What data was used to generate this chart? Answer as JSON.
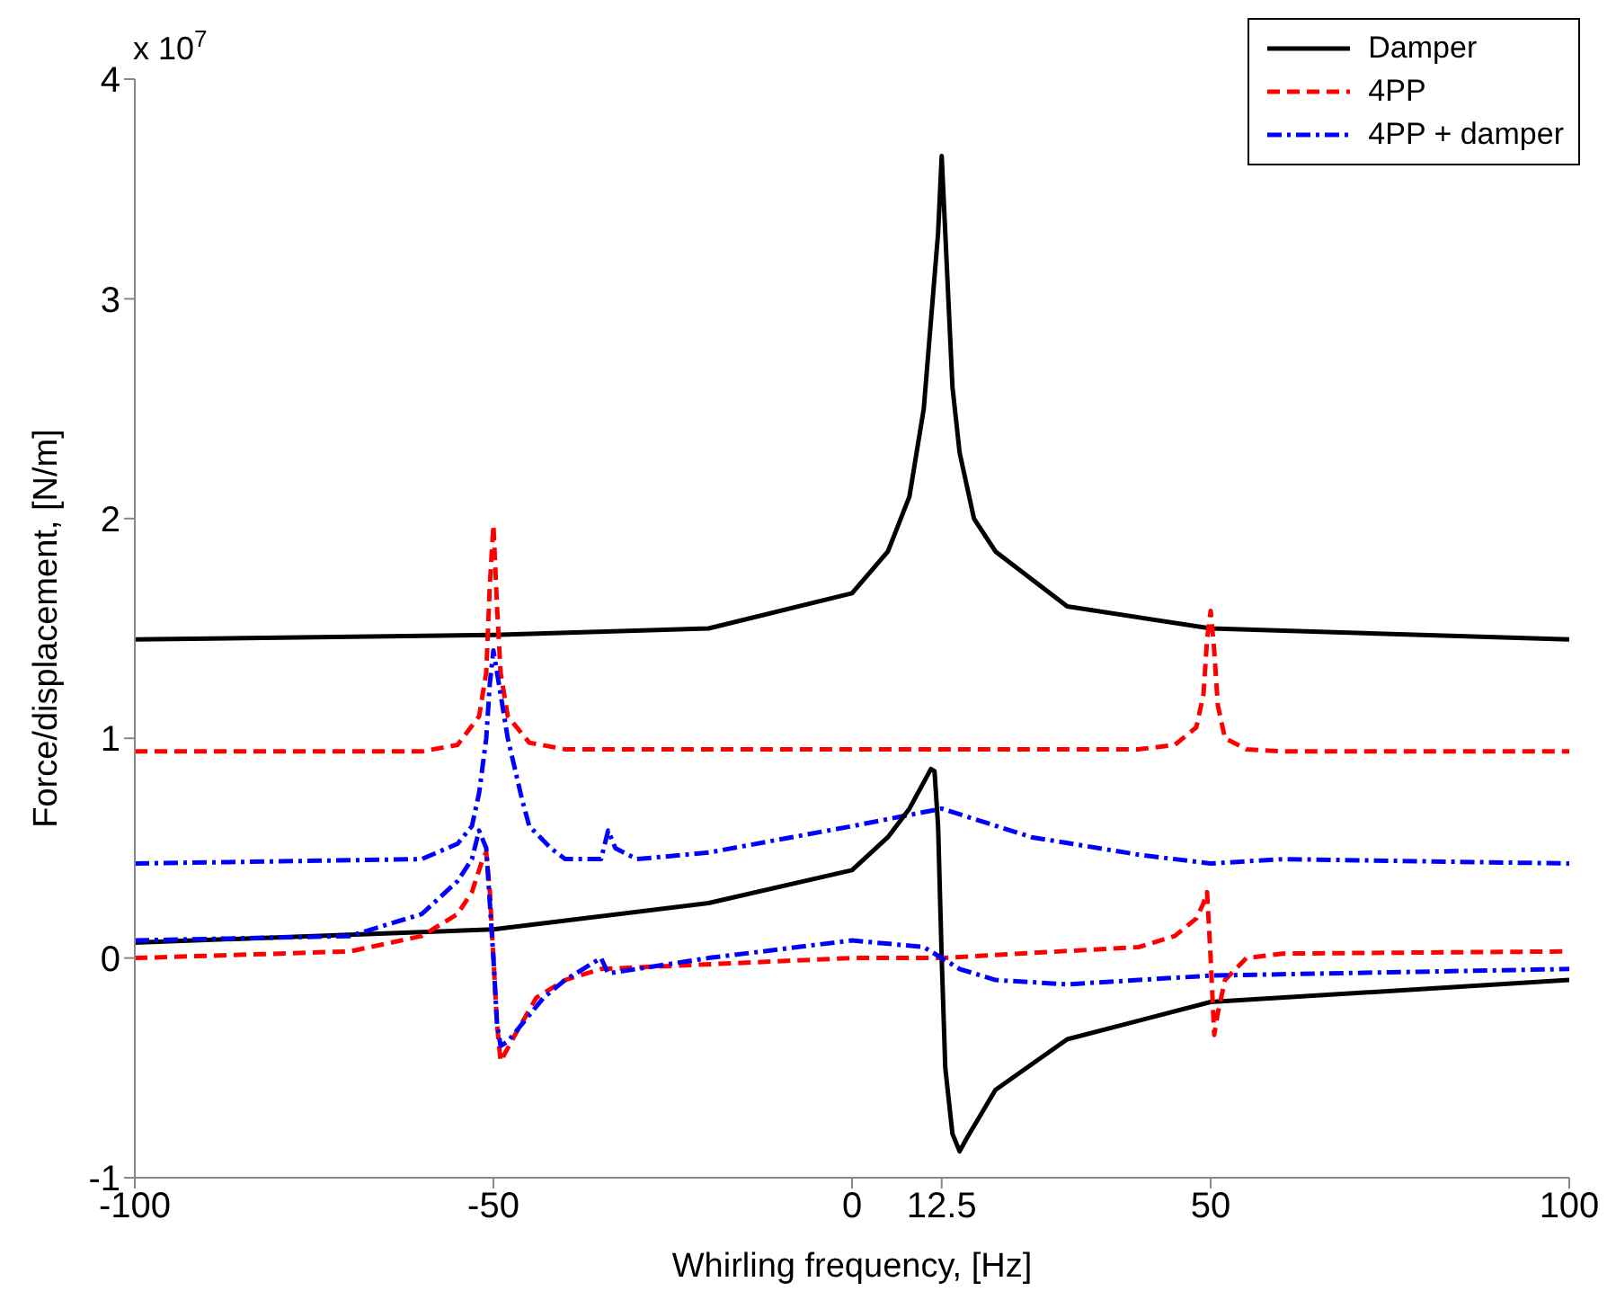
{
  "chart_data": {
    "type": "line",
    "xlabel": "Whirling frequency, [Hz]",
    "ylabel": "Force/displacement, [N/m]",
    "annotations": [
      "x 10$^{7}$"
    ],
    "xlim": [
      -100,
      100
    ],
    "xticks": [
      -100,
      -50,
      0,
      12.5,
      50,
      100
    ],
    "ylim": [
      -1,
      4
    ],
    "yticks": [
      -1,
      0,
      1,
      2,
      3,
      4
    ],
    "grid": false,
    "legend": "top right",
    "marker": "none",
    "series": [
      {
        "name": "Damper",
        "color": "#000000",
        "line_style": "solid",
        "x": [
          -100,
          -50,
          -20,
          0,
          5,
          8,
          10,
          11,
          12,
          12.5,
          13,
          14,
          15,
          17,
          20,
          30,
          50,
          100
        ],
        "values": [
          1.45,
          1.47,
          1.5,
          1.66,
          1.85,
          2.1,
          2.5,
          2.9,
          3.3,
          3.65,
          3.3,
          2.6,
          2.3,
          2.0,
          1.85,
          1.6,
          1.5,
          1.45
        ]
      },
      {
        "name": "4PP",
        "color": "#ff0000",
        "line_style": "dashed",
        "x": [
          -100,
          -60,
          -55,
          -52,
          -51,
          -50.5,
          -50,
          -49.5,
          -49,
          -48,
          -45,
          -40,
          0,
          40,
          45,
          48,
          49,
          49.5,
          50,
          50.5,
          51,
          52,
          55,
          60,
          100
        ],
        "values": [
          0.94,
          0.94,
          0.97,
          1.1,
          1.3,
          1.7,
          1.97,
          1.6,
          1.3,
          1.1,
          0.98,
          0.95,
          0.95,
          0.95,
          0.97,
          1.05,
          1.2,
          1.45,
          1.58,
          1.4,
          1.15,
          1.0,
          0.95,
          0.94,
          0.94
        ]
      },
      {
        "name": "4PP + damper",
        "color": "#0000ff",
        "line_style": "dashdot",
        "x": [
          -100,
          -60,
          -55,
          -53,
          -52,
          -51,
          -50.5,
          -50,
          -49,
          -48,
          -46,
          -45,
          -42,
          -40,
          -35,
          -34,
          -33,
          -30,
          -20,
          0,
          12.5,
          25,
          40,
          50,
          60,
          100
        ],
        "values": [
          0.43,
          0.45,
          0.52,
          0.6,
          0.75,
          1.0,
          1.25,
          1.4,
          1.2,
          1.0,
          0.72,
          0.6,
          0.5,
          0.45,
          0.45,
          0.58,
          0.5,
          0.45,
          0.48,
          0.6,
          0.68,
          0.55,
          0.47,
          0.43,
          0.45,
          0.43
        ]
      },
      {
        "color": "#000000",
        "line_style": "solid",
        "x": [
          -100,
          -50,
          -20,
          0,
          5,
          8,
          10,
          11,
          11.5,
          12,
          12.5,
          13,
          14,
          15,
          16,
          20,
          30,
          50,
          100
        ],
        "values": [
          0.07,
          0.13,
          0.25,
          0.4,
          0.55,
          0.68,
          0.8,
          0.86,
          0.85,
          0.6,
          0.0,
          -0.5,
          -0.8,
          -0.88,
          -0.82,
          -0.6,
          -0.37,
          -0.2,
          -0.1
        ]
      },
      {
        "color": "#ff0000",
        "line_style": "dashed",
        "x": [
          -100,
          -70,
          -60,
          -55,
          -53,
          -51.5,
          -51,
          -50.5,
          -50,
          -49.5,
          -49,
          -47,
          -44,
          -40,
          -35,
          0,
          12.5,
          40,
          45,
          48,
          49,
          49.5,
          50,
          50.5,
          51,
          52,
          55,
          60,
          100
        ],
        "values": [
          0.0,
          0.03,
          0.1,
          0.2,
          0.3,
          0.45,
          0.48,
          0.3,
          0.0,
          -0.3,
          -0.47,
          -0.35,
          -0.18,
          -0.1,
          -0.05,
          0.0,
          0.0,
          0.05,
          0.1,
          0.18,
          0.25,
          0.3,
          0.0,
          -0.35,
          -0.25,
          -0.1,
          0.0,
          0.02,
          0.03
        ]
      },
      {
        "color": "#0000ff",
        "line_style": "dashdot",
        "x": [
          -100,
          -70,
          -60,
          -55,
          -53,
          -52,
          -51,
          -50,
          -49.5,
          -49,
          -48,
          -46,
          -43,
          -40,
          -35,
          -34,
          -30,
          -20,
          0,
          10,
          15,
          20,
          30,
          50,
          100
        ],
        "values": [
          0.08,
          0.1,
          0.2,
          0.35,
          0.45,
          0.58,
          0.5,
          0.0,
          -0.3,
          -0.4,
          -0.38,
          -0.3,
          -0.18,
          -0.1,
          0.0,
          -0.07,
          -0.05,
          0.0,
          0.08,
          0.05,
          -0.05,
          -0.1,
          -0.12,
          -0.08,
          -0.05
        ]
      }
    ]
  }
}
